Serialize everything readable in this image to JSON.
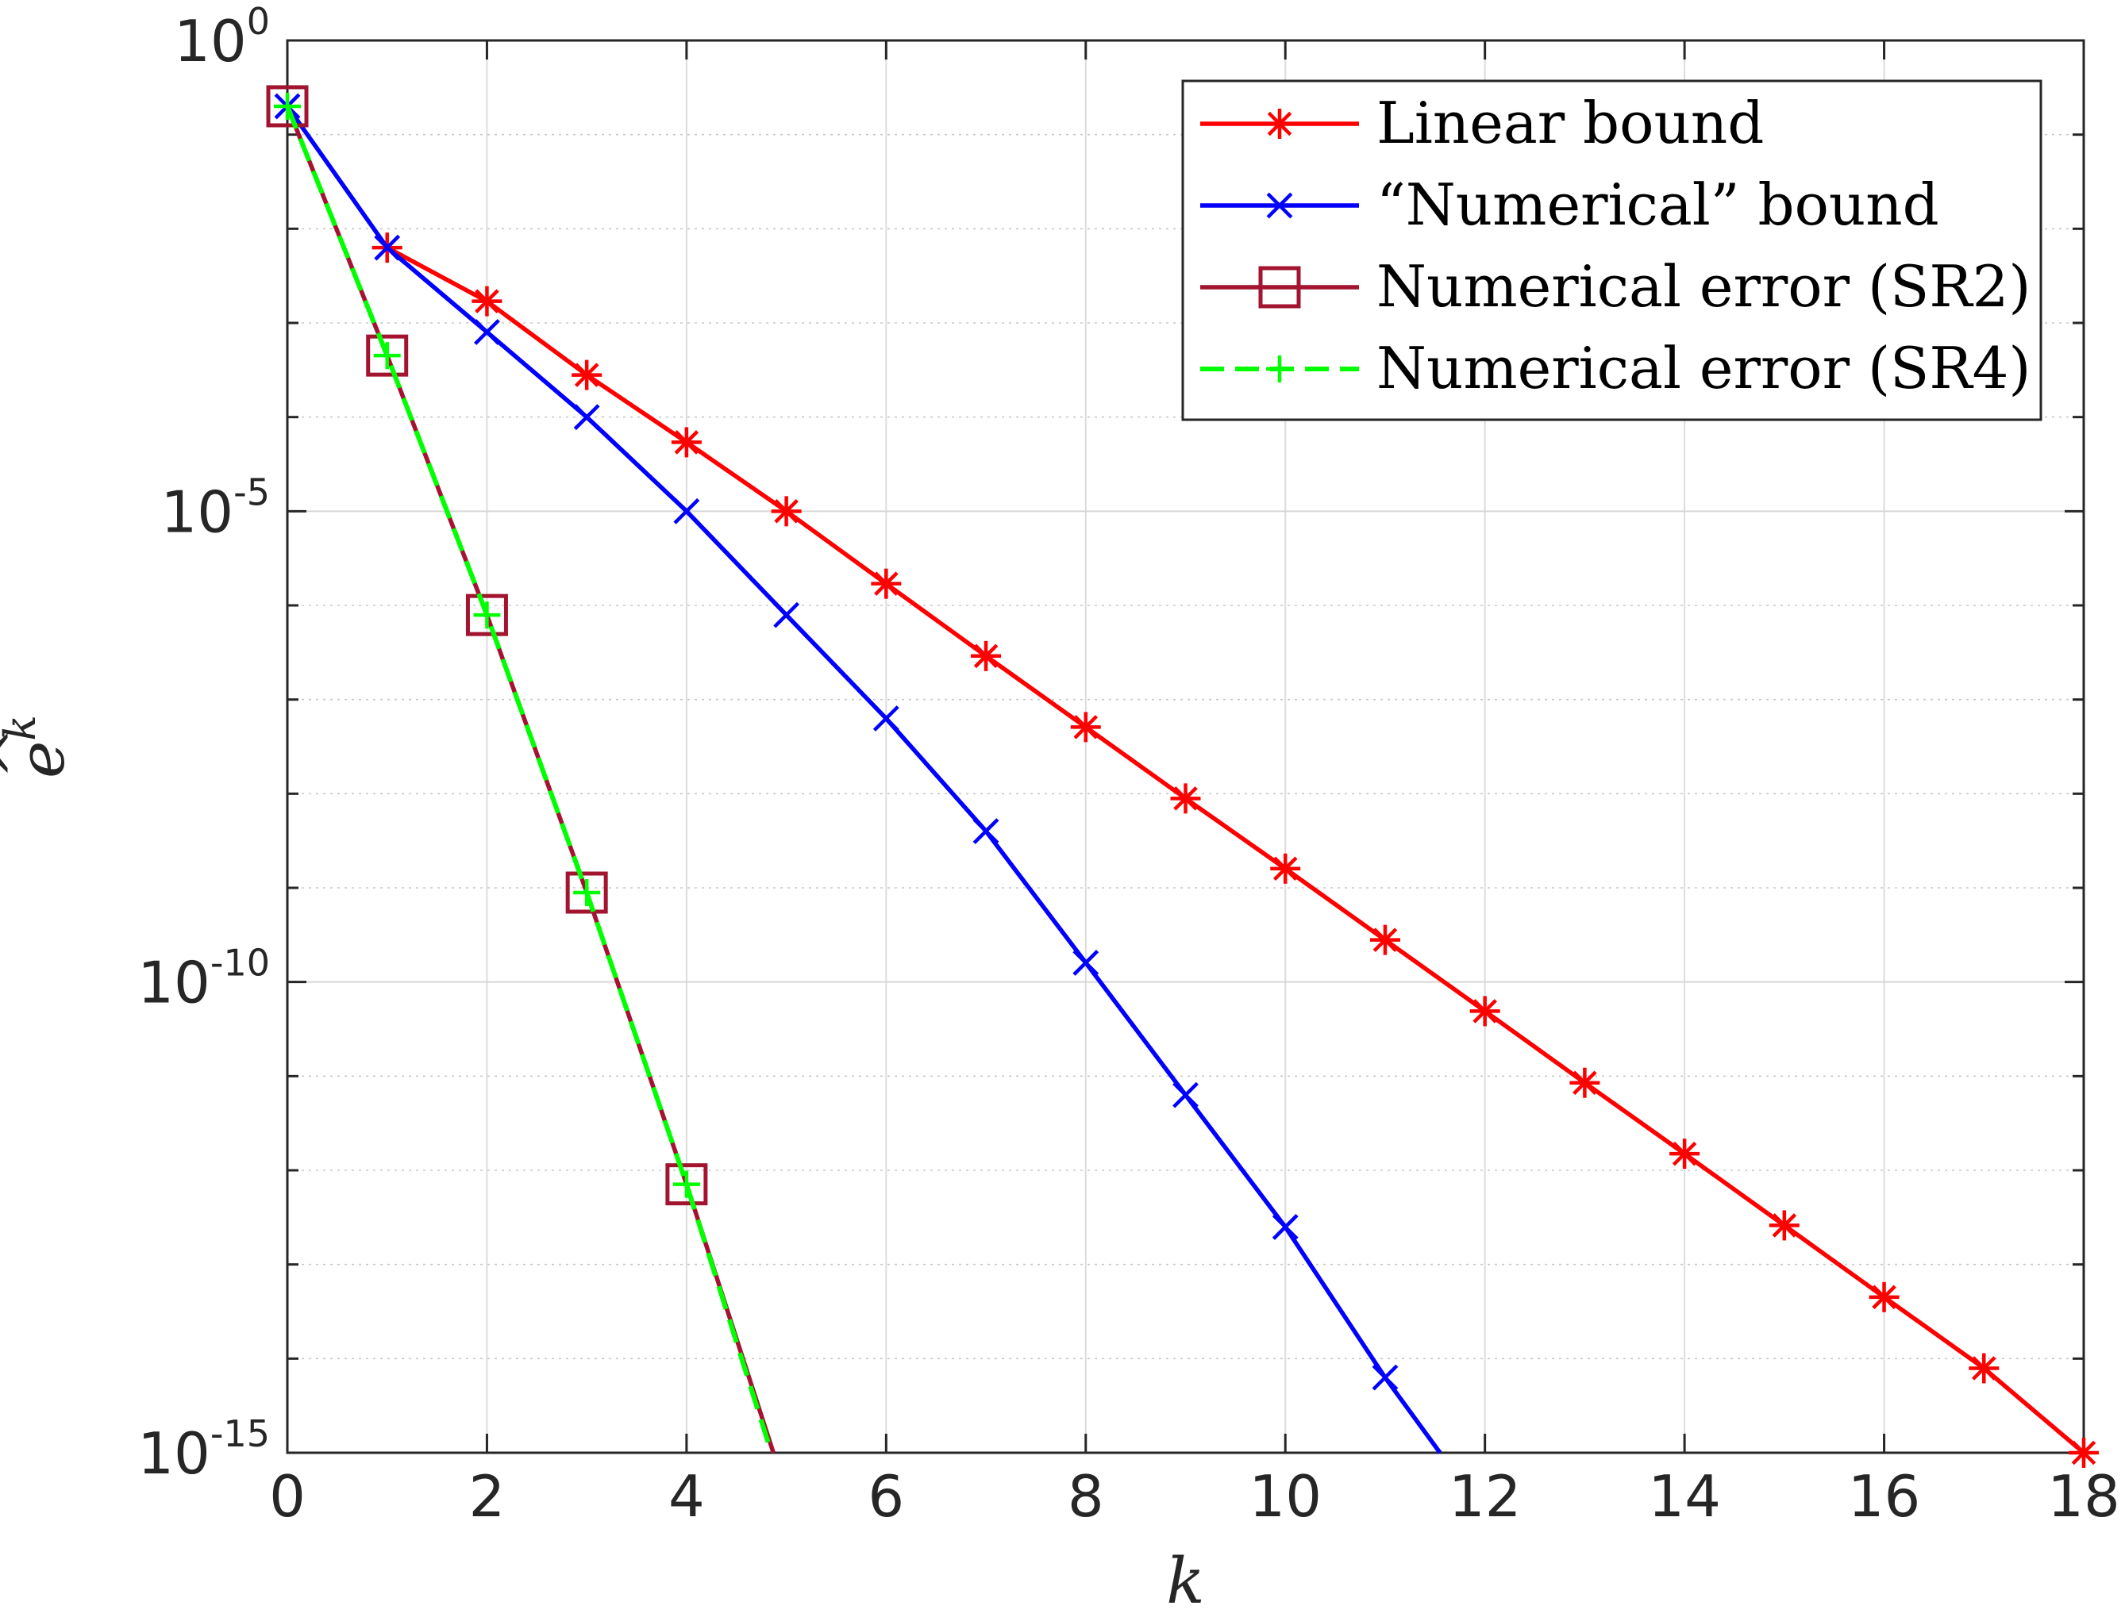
{
  "chart_data": {
    "type": "line",
    "xlabel": "k",
    "ylabel": "ê^k",
    "ylabel_base": "e",
    "ylabel_sup": "k",
    "xlim": [
      0,
      18
    ],
    "ylim": [
      1e-15,
      1
    ],
    "yscale": "log",
    "grid": true,
    "legend_placement": "top-right",
    "x_ticks": [
      0,
      2,
      4,
      6,
      8,
      10,
      12,
      14,
      16,
      18
    ],
    "x_tick_labels": [
      "0",
      "2",
      "4",
      "6",
      "8",
      "10",
      "12",
      "14",
      "16",
      "18"
    ],
    "y_ticks": [
      1,
      1e-05,
      1e-10,
      1e-15
    ],
    "y_tick_labels": [
      {
        "base": "10",
        "exp": "0"
      },
      {
        "base": "10",
        "exp": "-5"
      },
      {
        "base": "10",
        "exp": "-10"
      },
      {
        "base": "10",
        "exp": "-15"
      }
    ],
    "series": [
      {
        "name": "Linear bound",
        "color": "#ff0000",
        "marker": "asterisk",
        "line": "solid",
        "x": [
          1,
          2,
          3,
          4,
          5,
          6,
          7,
          8,
          9,
          10,
          11,
          12,
          13,
          14,
          15,
          16,
          17,
          18
        ],
        "y": [
          0.0063,
          0.0017,
          0.00028,
          5.4e-05,
          1e-05,
          1.7e-06,
          2.9e-07,
          5.1e-08,
          8.9e-09,
          1.6e-09,
          2.8e-10,
          4.9e-11,
          8.5e-12,
          1.5e-12,
          2.6e-13,
          4.5e-14,
          7.9e-15,
          1e-15
        ]
      },
      {
        "name": "“Numerical” bound",
        "color": "#0000ff",
        "marker": "x",
        "line": "solid",
        "x": [
          0,
          1,
          2,
          3,
          4,
          5,
          6,
          7,
          8,
          9,
          10,
          11,
          11.55
        ],
        "y": [
          0.2,
          0.0063,
          0.0008,
          0.0001,
          1e-05,
          7.9e-07,
          6.3e-08,
          4e-09,
          1.6e-10,
          6.3e-12,
          2.5e-13,
          6.3e-15,
          1e-15
        ]
      },
      {
        "name": "Numerical error (SR2)",
        "color": "#a2142f",
        "marker": "square",
        "line": "solid",
        "x": [
          0,
          1,
          2,
          3,
          4,
          4.87
        ],
        "y": [
          0.2,
          0.00045,
          7.9e-07,
          8.9e-10,
          7.1e-13,
          1e-15
        ]
      },
      {
        "name": "Numerical error (SR4)",
        "color": "#00ff00",
        "marker": "plus",
        "line": "dashed",
        "x": [
          0,
          1,
          2,
          3,
          4,
          4.85
        ],
        "y": [
          0.2,
          0.00045,
          7.9e-07,
          8.9e-10,
          7.1e-13,
          1e-15
        ]
      }
    ]
  }
}
